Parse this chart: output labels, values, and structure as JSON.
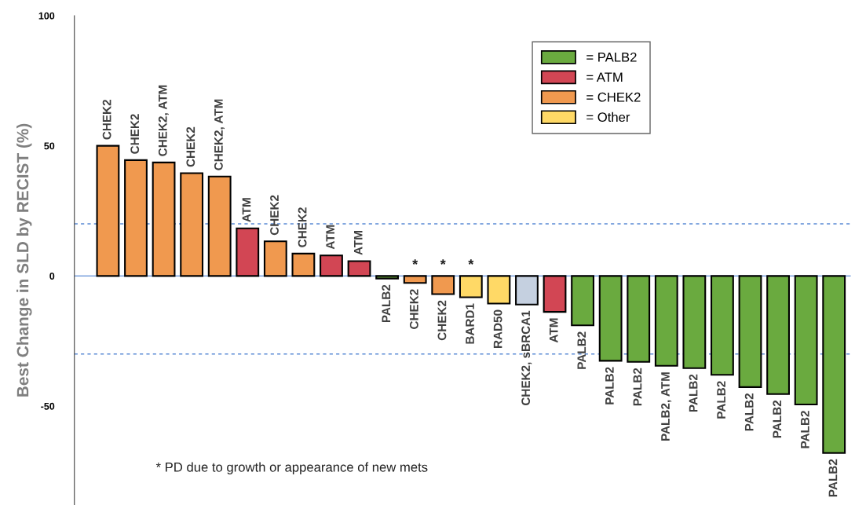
{
  "chart_data": {
    "type": "bar",
    "ylabel": "Best Change in SLD by RECIST (%)",
    "categories": [
      "CHEK2",
      "CHEK2",
      "CHEK2, ATM",
      "CHEK2",
      "CHEK2, ATM",
      "ATM",
      "CHEK2",
      "CHEK2",
      "ATM",
      "ATM",
      "PALB2",
      "CHEK2",
      "CHEK2",
      "BARD1",
      "RAD50",
      "CHEK2, sBRCA1",
      "ATM",
      "PALB2",
      "PALB2",
      "PALB2",
      "PALB2, ATM",
      "PALB2",
      "PALB2",
      "PALB2",
      "PALB2",
      "PALB2",
      "PALB2"
    ],
    "series": [
      {
        "name": "= PALB2",
        "color": "#6aaa3f",
        "values": [
          null,
          null,
          null,
          null,
          null,
          null,
          null,
          null,
          null,
          null,
          -1,
          null,
          null,
          null,
          null,
          null,
          null,
          -19,
          -32.6,
          -33,
          -34.5,
          -35.4,
          -38,
          -42.7,
          -45.4,
          -49.4,
          -68
        ]
      },
      {
        "name": "= ATM",
        "color": "#d24654",
        "values": [
          null,
          null,
          null,
          null,
          null,
          18.3,
          null,
          null,
          7.9,
          5.7,
          null,
          null,
          null,
          null,
          null,
          null,
          -13.8,
          null,
          null,
          null,
          null,
          null,
          null,
          null,
          null,
          null,
          null
        ]
      },
      {
        "name": "= CHEK2",
        "color": "#f0994f",
        "values": [
          50,
          44.5,
          43.6,
          39.5,
          38.2,
          null,
          13.3,
          8.6,
          null,
          null,
          null,
          -2.7,
          -7,
          null,
          null,
          null,
          null,
          null,
          null,
          null,
          null,
          null,
          null,
          null,
          null,
          null,
          null
        ],
        "value_labels": [
          null,
          null,
          null,
          null,
          null,
          null,
          null,
          null,
          null,
          null,
          null,
          "*",
          "*",
          null,
          null,
          null,
          null,
          null,
          null,
          null,
          null,
          null,
          null,
          null,
          null,
          null,
          null
        ]
      },
      {
        "name": "= Other",
        "color": "#ffd966",
        "values": [
          null,
          null,
          null,
          null,
          null,
          null,
          null,
          null,
          null,
          null,
          null,
          null,
          null,
          -8.2,
          -10.6,
          null,
          null,
          null,
          null,
          null,
          null,
          null,
          null,
          null,
          null,
          null,
          null
        ],
        "value_labels": [
          null,
          null,
          null,
          null,
          null,
          null,
          null,
          null,
          null,
          null,
          null,
          null,
          null,
          "*",
          null,
          null,
          null,
          null,
          null,
          null,
          null,
          null,
          null,
          null,
          null,
          null,
          null
        ]
      },
      {
        "color": "#c5d0e0",
        "values": [
          null,
          null,
          null,
          null,
          null,
          null,
          null,
          null,
          null,
          null,
          null,
          null,
          null,
          null,
          null,
          -11,
          null,
          null,
          null,
          null,
          null,
          null,
          null,
          null,
          null,
          null,
          null
        ]
      }
    ],
    "ylim": [
      -88,
      100
    ],
    "yticks": [
      100,
      50,
      0,
      -50
    ],
    "ref_lines": [
      {
        "axis": "y",
        "value": 0,
        "color": "#5b8bd5",
        "line_style": "solid"
      },
      {
        "axis": "y",
        "value": 20,
        "color": "#5b8bd5",
        "line_style": "dashed"
      },
      {
        "axis": "y",
        "value": -30,
        "color": "#5b8bd5",
        "line_style": "dashed"
      }
    ],
    "annotations": [
      "* PD due to growth or appearance of new mets"
    ],
    "legend": "top right",
    "grid": false
  }
}
